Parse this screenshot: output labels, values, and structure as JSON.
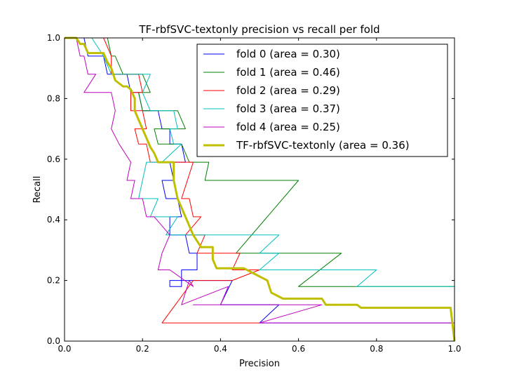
{
  "chart_data": {
    "type": "line",
    "title": "TF-rbfSVC-textonly precision vs recall per fold",
    "xlabel": "Precision",
    "ylabel": "Recall",
    "xlim": [
      0.0,
      1.0
    ],
    "ylim": [
      0.0,
      1.0
    ],
    "xticks": [
      "0.0",
      "0.2",
      "0.4",
      "0.6",
      "0.8",
      "1.0"
    ],
    "yticks": [
      "0.0",
      "0.2",
      "0.4",
      "0.6",
      "0.8",
      "1.0"
    ],
    "grid": false,
    "legend_position": "top-right",
    "series": [
      {
        "name": "fold 0 (area = 0.30)",
        "color": "#0000ff",
        "points": [
          [
            0.05,
            1.0
          ],
          [
            0.06,
            0.94
          ],
          [
            0.1,
            0.94
          ],
          [
            0.11,
            0.88
          ],
          [
            0.16,
            0.88
          ],
          [
            0.17,
            0.82
          ],
          [
            0.19,
            0.82
          ],
          [
            0.2,
            0.76
          ],
          [
            0.24,
            0.76
          ],
          [
            0.25,
            0.7
          ],
          [
            0.27,
            0.7
          ],
          [
            0.27,
            0.65
          ],
          [
            0.3,
            0.65
          ],
          [
            0.31,
            0.59
          ],
          [
            0.27,
            0.59
          ],
          [
            0.28,
            0.53
          ],
          [
            0.25,
            0.53
          ],
          [
            0.26,
            0.47
          ],
          [
            0.29,
            0.47
          ],
          [
            0.3,
            0.41
          ],
          [
            0.27,
            0.41
          ],
          [
            0.27,
            0.35
          ],
          [
            0.31,
            0.35
          ],
          [
            0.32,
            0.29
          ],
          [
            0.34,
            0.29
          ],
          [
            0.34,
            0.235
          ],
          [
            0.3,
            0.235
          ],
          [
            0.3,
            0.18
          ],
          [
            0.27,
            0.18
          ],
          [
            0.27,
            0.2
          ],
          [
            0.43,
            0.2
          ],
          [
            0.4,
            0.12
          ],
          [
            0.55,
            0.12
          ],
          [
            0.5,
            0.06
          ],
          [
            1.0,
            0.06
          ],
          [
            1.0,
            0.0
          ]
        ]
      },
      {
        "name": "fold 1 (area = 0.46)",
        "color": "#008000",
        "points": [
          [
            0.11,
            1.0
          ],
          [
            0.12,
            0.94
          ],
          [
            0.13,
            0.94
          ],
          [
            0.15,
            0.88
          ],
          [
            0.2,
            0.88
          ],
          [
            0.22,
            0.82
          ],
          [
            0.19,
            0.82
          ],
          [
            0.2,
            0.76
          ],
          [
            0.29,
            0.76
          ],
          [
            0.31,
            0.7
          ],
          [
            0.23,
            0.7
          ],
          [
            0.24,
            0.65
          ],
          [
            0.3,
            0.65
          ],
          [
            0.32,
            0.59
          ],
          [
            0.37,
            0.59
          ],
          [
            0.36,
            0.53
          ],
          [
            0.6,
            0.53
          ],
          [
            0.44,
            0.29
          ],
          [
            0.71,
            0.29
          ],
          [
            0.6,
            0.18
          ],
          [
            1.0,
            0.18
          ]
        ]
      },
      {
        "name": "fold 2 (area = 0.29)",
        "color": "#ff0000",
        "points": [
          [
            0.1,
            1.0
          ],
          [
            0.12,
            0.94
          ],
          [
            0.12,
            0.88
          ],
          [
            0.19,
            0.88
          ],
          [
            0.2,
            0.82
          ],
          [
            0.17,
            0.82
          ],
          [
            0.17,
            0.76
          ],
          [
            0.2,
            0.76
          ],
          [
            0.21,
            0.7
          ],
          [
            0.18,
            0.7
          ],
          [
            0.19,
            0.65
          ],
          [
            0.21,
            0.65
          ],
          [
            0.22,
            0.59
          ],
          [
            0.33,
            0.59
          ],
          [
            0.3,
            0.47
          ],
          [
            0.32,
            0.47
          ],
          [
            0.33,
            0.41
          ],
          [
            0.35,
            0.41
          ],
          [
            0.31,
            0.35
          ],
          [
            0.36,
            0.35
          ],
          [
            0.34,
            0.29
          ],
          [
            0.45,
            0.29
          ],
          [
            0.43,
            0.235
          ],
          [
            0.5,
            0.235
          ],
          [
            0.43,
            0.2
          ],
          [
            0.33,
            0.2
          ],
          [
            0.25,
            0.06
          ],
          [
            0.5,
            0.06
          ]
        ]
      },
      {
        "name": "fold 3 (area = 0.37)",
        "color": "#00bfbf",
        "points": [
          [
            0.07,
            1.0
          ],
          [
            0.1,
            0.94
          ],
          [
            0.12,
            0.88
          ],
          [
            0.22,
            0.88
          ],
          [
            0.2,
            0.82
          ],
          [
            0.22,
            0.76
          ],
          [
            0.28,
            0.76
          ],
          [
            0.29,
            0.7
          ],
          [
            0.27,
            0.7
          ],
          [
            0.28,
            0.65
          ],
          [
            0.3,
            0.65
          ],
          [
            0.25,
            0.59
          ],
          [
            0.21,
            0.59
          ],
          [
            0.19,
            0.47
          ],
          [
            0.24,
            0.47
          ],
          [
            0.22,
            0.41
          ],
          [
            0.29,
            0.41
          ],
          [
            0.26,
            0.35
          ],
          [
            0.55,
            0.35
          ],
          [
            0.5,
            0.29
          ],
          [
            0.55,
            0.29
          ],
          [
            0.5,
            0.235
          ],
          [
            0.8,
            0.235
          ],
          [
            0.75,
            0.18
          ],
          [
            1.0,
            0.18
          ]
        ]
      },
      {
        "name": "fold 4 (area = 0.25)",
        "color": "#bf00bf",
        "points": [
          [
            0.03,
            1.0
          ],
          [
            0.04,
            0.94
          ],
          [
            0.05,
            0.94
          ],
          [
            0.06,
            0.88
          ],
          [
            0.08,
            0.88
          ],
          [
            0.05,
            0.82
          ],
          [
            0.12,
            0.82
          ],
          [
            0.13,
            0.76
          ],
          [
            0.12,
            0.7
          ],
          [
            0.14,
            0.65
          ],
          [
            0.17,
            0.59
          ],
          [
            0.16,
            0.53
          ],
          [
            0.18,
            0.53
          ],
          [
            0.17,
            0.47
          ],
          [
            0.2,
            0.47
          ],
          [
            0.21,
            0.41
          ],
          [
            0.23,
            0.41
          ],
          [
            0.27,
            0.35
          ],
          [
            0.25,
            0.29
          ],
          [
            0.24,
            0.235
          ],
          [
            0.27,
            0.235
          ],
          [
            0.33,
            0.18
          ],
          [
            0.32,
            0.2
          ],
          [
            0.3,
            0.12
          ],
          [
            0.42,
            0.18
          ],
          [
            0.4,
            0.12
          ],
          [
            0.33,
            0.12
          ],
          [
            0.45,
            0.12
          ],
          [
            0.66,
            0.12
          ],
          [
            0.5,
            0.06
          ],
          [
            1.0,
            0.06
          ]
        ]
      },
      {
        "name": "TF-rbfSVC-textonly (area = 0.36)",
        "color": "#bfbf00",
        "bold": true,
        "points": [
          [
            0.0,
            1.0
          ],
          [
            0.03,
            1.0
          ],
          [
            0.04,
            0.98
          ],
          [
            0.05,
            0.98
          ],
          [
            0.06,
            0.95
          ],
          [
            0.1,
            0.95
          ],
          [
            0.11,
            0.92
          ],
          [
            0.12,
            0.9
          ],
          [
            0.13,
            0.86
          ],
          [
            0.15,
            0.84
          ],
          [
            0.16,
            0.84
          ],
          [
            0.17,
            0.83
          ],
          [
            0.18,
            0.8
          ],
          [
            0.18,
            0.76
          ],
          [
            0.19,
            0.73
          ],
          [
            0.2,
            0.7
          ],
          [
            0.21,
            0.67
          ],
          [
            0.22,
            0.64
          ],
          [
            0.23,
            0.62
          ],
          [
            0.24,
            0.59
          ],
          [
            0.28,
            0.59
          ],
          [
            0.28,
            0.53
          ],
          [
            0.29,
            0.47
          ],
          [
            0.3,
            0.44
          ],
          [
            0.31,
            0.41
          ],
          [
            0.32,
            0.38
          ],
          [
            0.33,
            0.35
          ],
          [
            0.34,
            0.33
          ],
          [
            0.35,
            0.31
          ],
          [
            0.38,
            0.31
          ],
          [
            0.38,
            0.27
          ],
          [
            0.39,
            0.24
          ],
          [
            0.46,
            0.24
          ],
          [
            0.49,
            0.22
          ],
          [
            0.52,
            0.2
          ],
          [
            0.53,
            0.16
          ],
          [
            0.56,
            0.14
          ],
          [
            0.66,
            0.14
          ],
          [
            0.67,
            0.12
          ],
          [
            0.75,
            0.12
          ],
          [
            0.76,
            0.11
          ],
          [
            0.99,
            0.11
          ],
          [
            1.0,
            0.0
          ]
        ]
      }
    ]
  }
}
